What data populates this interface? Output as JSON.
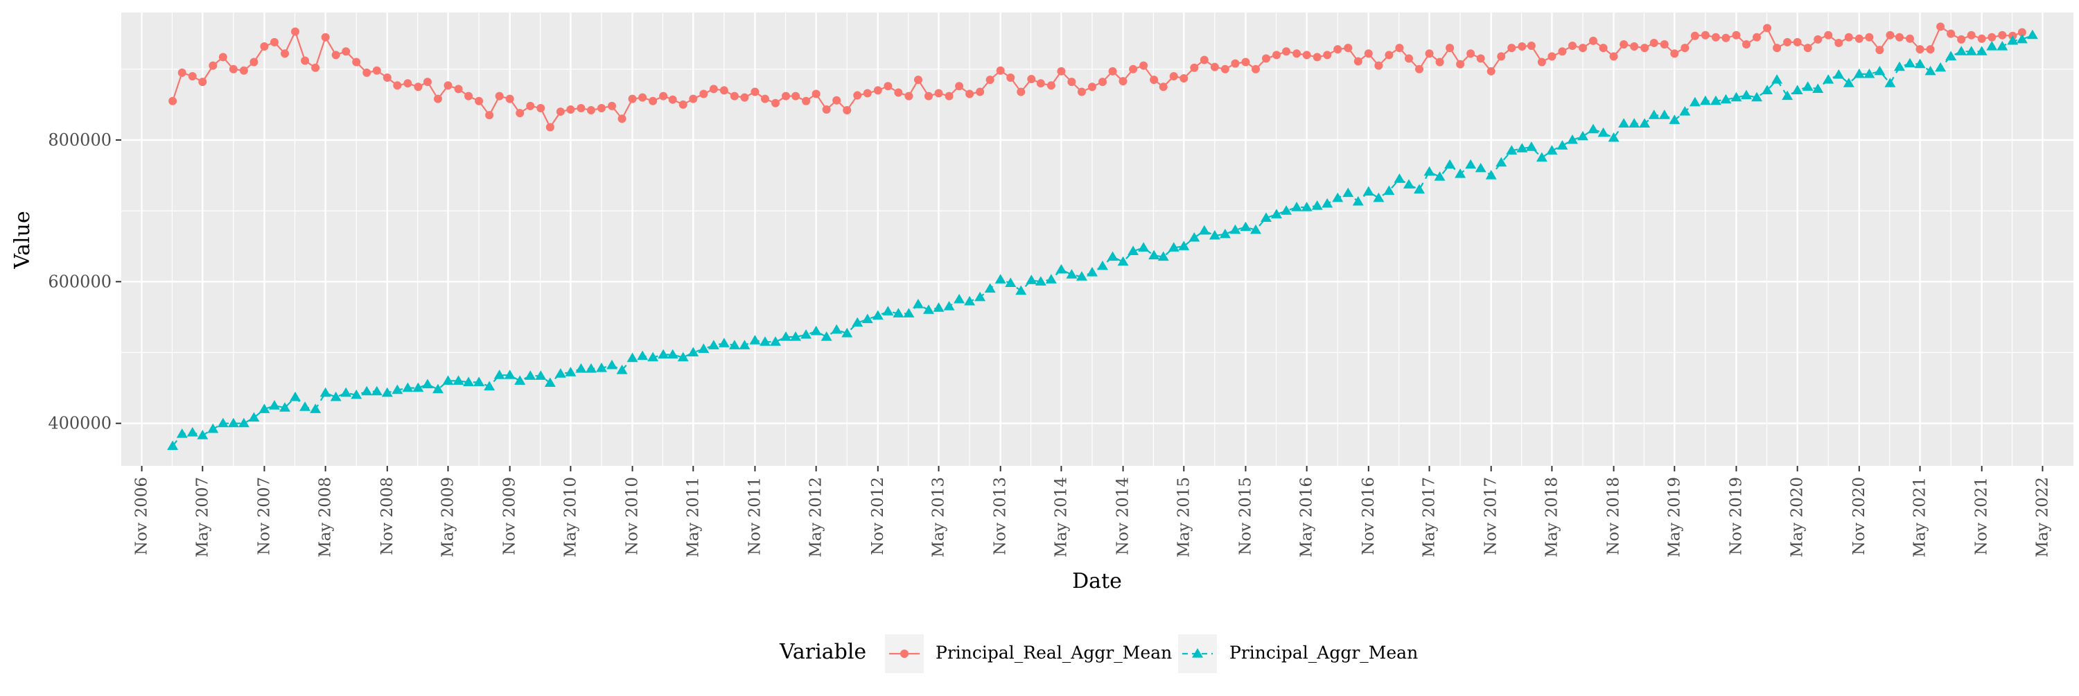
{
  "chart_data": {
    "type": "line",
    "title": "",
    "xlabel": "Date",
    "ylabel": "Value",
    "x_range": [
      "2006-09-01",
      "2022-08-01"
    ],
    "y_range": [
      340000,
      980000
    ],
    "x_tick_labels": [
      "Nov 2006",
      "May 2007",
      "Nov 2007",
      "May 2008",
      "Nov 2008",
      "May 2009",
      "Nov 2009",
      "May 2010",
      "Nov 2010",
      "May 2011",
      "Nov 2011",
      "May 2012",
      "Nov 2012",
      "May 2013",
      "Nov 2013",
      "May 2014",
      "Nov 2014",
      "May 2015",
      "Nov 2015",
      "May 2016",
      "Nov 2016",
      "May 2017",
      "Nov 2017",
      "May 2018",
      "Nov 2018",
      "May 2019",
      "Nov 2019",
      "May 2020",
      "Nov 2020",
      "May 2021",
      "Nov 2021",
      "May 2022"
    ],
    "y_ticks": [
      400000,
      600000,
      800000
    ],
    "y_tick_labels": [
      "400000",
      "600000",
      "800000"
    ],
    "grid": true,
    "legend": {
      "title": "Variable",
      "position": "bottom",
      "entries": [
        "Principal_Real_Aggr_Mean",
        "Principal_Aggr_Mean"
      ]
    },
    "series": [
      {
        "name": "Principal_Real_Aggr_Mean",
        "color": "#F8766D",
        "marker": "circle",
        "line_style": "solid",
        "x_start": "2007-02",
        "values": [
          855000,
          895000,
          890000,
          882000,
          905000,
          917000,
          900000,
          898000,
          910000,
          932000,
          938000,
          922000,
          953000,
          912000,
          902000,
          945000,
          920000,
          925000,
          910000,
          895000,
          898000,
          888000,
          877000,
          880000,
          875000,
          882000,
          858000,
          877000,
          872000,
          862000,
          855000,
          835000,
          862000,
          858000,
          838000,
          848000,
          845000,
          818000,
          840000,
          843000,
          845000,
          842000,
          845000,
          848000,
          830000,
          858000,
          860000,
          855000,
          862000,
          857000,
          850000,
          858000,
          865000,
          872000,
          870000,
          862000,
          860000,
          868000,
          858000,
          852000,
          862000,
          862000,
          855000,
          865000,
          843000,
          856000,
          842000,
          863000,
          866000,
          870000,
          876000,
          867000,
          862000,
          885000,
          862000,
          866000,
          862000,
          876000,
          865000,
          868000,
          885000,
          898000,
          888000,
          868000,
          886000,
          880000,
          877000,
          897000,
          882000,
          868000,
          875000,
          882000,
          897000,
          883000,
          900000,
          905000,
          885000,
          875000,
          890000,
          887000,
          902000,
          913000,
          903000,
          900000,
          908000,
          910000,
          900000,
          915000,
          920000,
          925000,
          922000,
          920000,
          917000,
          920000,
          928000,
          930000,
          911000,
          922000,
          905000,
          920000,
          930000,
          915000,
          900000,
          922000,
          910000,
          930000,
          907000,
          922000,
          915000,
          897000,
          918000,
          930000,
          932000,
          933000,
          910000,
          918000,
          925000,
          933000,
          930000,
          940000,
          930000,
          918000,
          935000,
          932000,
          930000,
          937000,
          935000,
          922000,
          930000,
          947000,
          948000,
          945000,
          944000,
          948000,
          935000,
          945000,
          958000,
          930000,
          938000,
          938000,
          930000,
          942000,
          948000,
          937000,
          945000,
          943000,
          945000,
          927000,
          948000,
          945000,
          943000,
          928000,
          928000,
          960000,
          950000,
          942000,
          948000,
          943000,
          945000,
          948000,
          947000,
          952000
        ]
      },
      {
        "name": "Principal_Aggr_Mean",
        "color": "#00BFC4",
        "marker": "triangle",
        "line_style": "dashed",
        "x_start": "2007-02",
        "values": [
          368000,
          385000,
          387000,
          383000,
          392000,
          400000,
          400000,
          400000,
          408000,
          420000,
          425000,
          422000,
          437000,
          423000,
          420000,
          443000,
          437000,
          443000,
          440000,
          445000,
          445000,
          443000,
          447000,
          450000,
          450000,
          455000,
          448000,
          460000,
          460000,
          458000,
          458000,
          452000,
          468000,
          468000,
          460000,
          467000,
          467000,
          457000,
          470000,
          472000,
          477000,
          477000,
          478000,
          482000,
          475000,
          492000,
          495000,
          493000,
          497000,
          497000,
          493000,
          500000,
          505000,
          510000,
          513000,
          510000,
          510000,
          517000,
          515000,
          515000,
          522000,
          522000,
          525000,
          530000,
          522000,
          532000,
          527000,
          542000,
          547000,
          552000,
          558000,
          555000,
          555000,
          568000,
          560000,
          563000,
          565000,
          575000,
          572000,
          578000,
          590000,
          603000,
          598000,
          587000,
          602000,
          600000,
          603000,
          617000,
          610000,
          607000,
          613000,
          622000,
          635000,
          628000,
          643000,
          648000,
          637000,
          635000,
          648000,
          650000,
          662000,
          672000,
          665000,
          667000,
          673000,
          677000,
          673000,
          690000,
          695000,
          700000,
          705000,
          705000,
          707000,
          710000,
          718000,
          725000,
          713000,
          727000,
          718000,
          728000,
          745000,
          737000,
          730000,
          755000,
          748000,
          765000,
          752000,
          765000,
          760000,
          750000,
          768000,
          785000,
          788000,
          790000,
          775000,
          785000,
          792000,
          800000,
          805000,
          815000,
          810000,
          803000,
          823000,
          823000,
          823000,
          835000,
          835000,
          828000,
          840000,
          853000,
          855000,
          855000,
          857000,
          860000,
          863000,
          860000,
          870000,
          885000,
          862000,
          870000,
          875000,
          872000,
          885000,
          892000,
          880000,
          893000,
          893000,
          897000,
          880000,
          903000,
          908000,
          907000,
          897000,
          902000,
          918000,
          925000,
          925000,
          925000,
          932000,
          932000,
          940000,
          942000,
          948000
        ]
      }
    ]
  }
}
